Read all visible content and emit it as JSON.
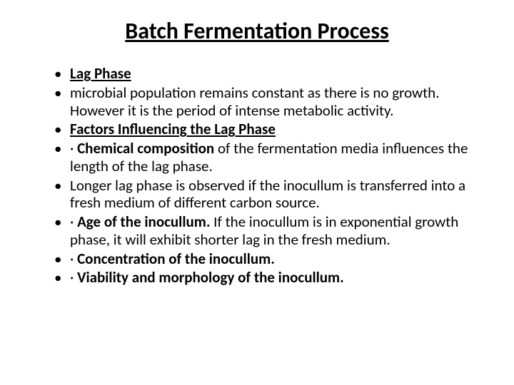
{
  "title": "Batch Fermentation Process",
  "bullets": [
    {
      "segments": [
        {
          "text": "Lag Phase",
          "bold": true,
          "underline": true
        }
      ]
    },
    {
      "segments": [
        {
          "text": "microbial population remains constant as there is no growth. However it is the period of intense metabolic activity."
        }
      ]
    },
    {
      "segments": [
        {
          "text": "Factors Influencing the Lag Phase",
          "bold": true,
          "underline": true
        }
      ]
    },
    {
      "segments": [
        {
          "text": "· "
        },
        {
          "text": "Chemical composition",
          "bold": true
        },
        {
          "text": " of the fermentation media influences the length of the lag phase."
        }
      ]
    },
    {
      "segments": [
        {
          "text": "Longer lag phase is observed if the inocullum is transferred into a fresh medium of different carbon source."
        }
      ]
    },
    {
      "segments": [
        {
          "text": "· "
        },
        {
          "text": "Age of the inocullum.",
          "bold": true
        },
        {
          "text": " If the inocullum is in exponential growth phase, it will exhibit shorter lag in the fresh medium."
        }
      ]
    },
    {
      "segments": [
        {
          "text": "· "
        },
        {
          "text": "Concentration of the inocullum.",
          "bold": true
        }
      ]
    },
    {
      "segments": [
        {
          "text": "· "
        },
        {
          "text": "Viability and morphology of the inocullum.",
          "bold": true
        }
      ]
    }
  ],
  "style": {
    "background_color": "#ffffff",
    "text_color": "#000000",
    "title_fontsize": 32,
    "body_fontsize": 21,
    "font_family": "Calibri"
  }
}
